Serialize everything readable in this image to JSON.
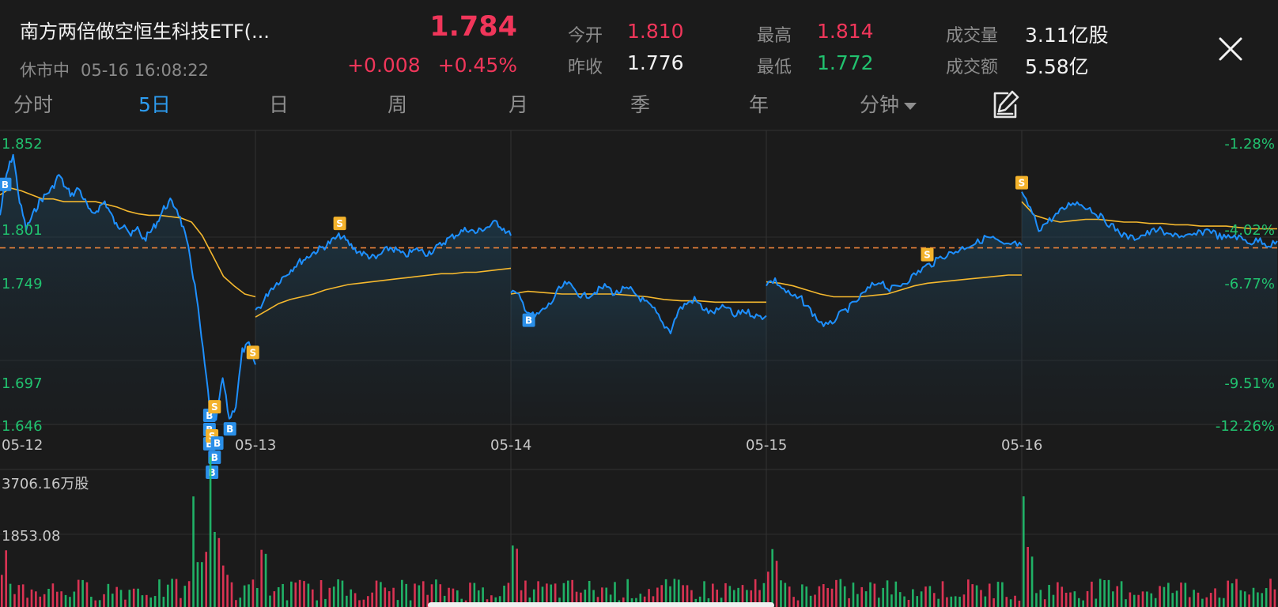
{
  "header": {
    "title": "南方两倍做空恒生科技ETF(...",
    "market_status": "休市中",
    "timestamp": "05-16 16:08:22",
    "price": "1.784",
    "change": "+0.008",
    "change_pct": "+0.45%"
  },
  "quote": {
    "open_label": "今开",
    "open": "1.810",
    "prev_close_label": "昨收",
    "prev_close": "1.776",
    "high_label": "最高",
    "high": "1.814",
    "low_label": "最低",
    "low": "1.772",
    "volume_label": "成交量",
    "volume": "3.11亿股",
    "turnover_label": "成交额",
    "turnover": "5.58亿"
  },
  "tabs": [
    {
      "label": "分时",
      "active": false
    },
    {
      "label": "5日",
      "active": true
    },
    {
      "label": "日",
      "active": false
    },
    {
      "label": "周",
      "active": false
    },
    {
      "label": "月",
      "active": false
    },
    {
      "label": "季",
      "active": false
    },
    {
      "label": "年",
      "active": false
    },
    {
      "label": "分钟",
      "active": false,
      "dropdown": true
    }
  ],
  "icons": {
    "close": "close-icon",
    "draw": "draw-edit-icon",
    "dropdown": "caret-down-icon"
  },
  "colors": {
    "background": "#1b1b1b",
    "up": "#f0365a",
    "down": "#21c26f",
    "price_line": "#1e90ff",
    "avg_line": "#f5b82e",
    "prev_close_line": "#e8813a",
    "active_tab": "#2d9cf0"
  },
  "chart_data": {
    "type": "line",
    "title": "",
    "dates": [
      "05-12",
      "05-13",
      "05-14",
      "05-15",
      "05-16"
    ],
    "price_axis": [
      "1.852",
      "1.801",
      "1.749",
      "1.697",
      "1.646"
    ],
    "pct_axis": [
      "-1.28%",
      "-4.02%",
      "-6.77%",
      "-9.51%",
      "-12.26%"
    ],
    "reference_price": 1.776,
    "ylim": [
      1.646,
      1.852
    ],
    "series": [
      {
        "name": "price",
        "days": [
          [
            1.8,
            1.83,
            1.845,
            1.81,
            1.79,
            1.8,
            1.81,
            1.815,
            1.82,
            1.83,
            1.82,
            1.815,
            1.82,
            1.81,
            1.8,
            1.805,
            1.81,
            1.8,
            1.79,
            1.795,
            1.785,
            1.79,
            1.782,
            1.788,
            1.795,
            1.805,
            1.81,
            1.805,
            1.79,
            1.77,
            1.74,
            1.7,
            1.66,
            1.65,
            1.68,
            1.65,
            1.66,
            1.7,
            1.705,
            1.69
          ],
          [
            1.73,
            1.735,
            1.745,
            1.75,
            1.755,
            1.76,
            1.765,
            1.768,
            1.772,
            1.775,
            1.778,
            1.782,
            1.785,
            1.78,
            1.775,
            1.772,
            1.77,
            1.768,
            1.773,
            1.776,
            1.774,
            1.77,
            1.773,
            1.775,
            1.772,
            1.774,
            1.778,
            1.782,
            1.785,
            1.788,
            1.79,
            1.787,
            1.79,
            1.792,
            1.795,
            1.79,
            1.785
          ],
          [
            1.745,
            1.74,
            1.73,
            1.725,
            1.73,
            1.735,
            1.745,
            1.75,
            1.745,
            1.74,
            1.742,
            1.745,
            1.748,
            1.742,
            1.745,
            1.745,
            1.74,
            1.735,
            1.73,
            1.72,
            1.715,
            1.73,
            1.735,
            1.738,
            1.732,
            1.728,
            1.73,
            1.733,
            1.725,
            1.73,
            1.728,
            1.725,
            1.726
          ],
          [
            1.75,
            1.752,
            1.745,
            1.74,
            1.738,
            1.73,
            1.722,
            1.718,
            1.725,
            1.73,
            1.735,
            1.742,
            1.748,
            1.752,
            1.745,
            1.748,
            1.752,
            1.757,
            1.762,
            1.765,
            1.77,
            1.772,
            1.775,
            1.778,
            1.78,
            1.784,
            1.782,
            1.777,
            1.779,
            1.778
          ],
          [
            1.815,
            1.805,
            1.79,
            1.795,
            1.8,
            1.805,
            1.81,
            1.808,
            1.805,
            1.8,
            1.795,
            1.79,
            1.785,
            1.783,
            1.785,
            1.787,
            1.79,
            1.785,
            1.787,
            1.783,
            1.785,
            1.787,
            1.79,
            1.785,
            1.783,
            1.785,
            1.782,
            1.78,
            1.782,
            1.778,
            1.781
          ]
        ]
      },
      {
        "name": "average",
        "days": [
          [
            1.815,
            1.82,
            1.818,
            1.815,
            1.812,
            1.812,
            1.81,
            1.81,
            1.81,
            1.81,
            1.808,
            1.806,
            1.803,
            1.801,
            1.8,
            1.8,
            1.799,
            1.798,
            1.795,
            1.785,
            1.77,
            1.755,
            1.748,
            1.742,
            1.74
          ],
          [
            1.725,
            1.73,
            1.735,
            1.738,
            1.74,
            1.742,
            1.745,
            1.747,
            1.749,
            1.75,
            1.751,
            1.752,
            1.753,
            1.754,
            1.755,
            1.756,
            1.757,
            1.757,
            1.758,
            1.758,
            1.759,
            1.76,
            1.761
          ],
          [
            1.742,
            1.744,
            1.743,
            1.742,
            1.742,
            1.742,
            1.742,
            1.741,
            1.74,
            1.738,
            1.737,
            1.737,
            1.736,
            1.736,
            1.736,
            1.736
          ],
          [
            1.751,
            1.75,
            1.748,
            1.745,
            1.742,
            1.74,
            1.74,
            1.74,
            1.741,
            1.742,
            1.745,
            1.748,
            1.75,
            1.751,
            1.752,
            1.753,
            1.754,
            1.755,
            1.756,
            1.756
          ],
          [
            1.81,
            1.8,
            1.797,
            1.795,
            1.796,
            1.797,
            1.797,
            1.796,
            1.795,
            1.795,
            1.794,
            1.794,
            1.793,
            1.793,
            1.792,
            1.792,
            1.792,
            1.791,
            1.79,
            1.79,
            1.79
          ]
        ]
      }
    ],
    "trade_markers": [
      {
        "day": 0,
        "pos": 0.02,
        "type": "B"
      },
      {
        "day": 0,
        "pos": 0.82,
        "type": "B"
      },
      {
        "day": 0,
        "pos": 0.82,
        "type": "B"
      },
      {
        "day": 0,
        "pos": 0.82,
        "type": "B"
      },
      {
        "day": 0,
        "pos": 0.84,
        "type": "S"
      },
      {
        "day": 0,
        "pos": 0.83,
        "type": "S"
      },
      {
        "day": 0,
        "pos": 0.83,
        "type": "B"
      },
      {
        "day": 0,
        "pos": 0.85,
        "type": "B"
      },
      {
        "day": 0,
        "pos": 0.9,
        "type": "B"
      },
      {
        "day": 0,
        "pos": 0.84,
        "type": "B"
      },
      {
        "day": 0,
        "pos": 0.99,
        "type": "S"
      },
      {
        "day": 1,
        "pos": 0.33,
        "type": "S"
      },
      {
        "day": 2,
        "pos": 0.07,
        "type": "B"
      },
      {
        "day": 3,
        "pos": 0.63,
        "type": "S"
      },
      {
        "day": 4,
        "pos": 0.0,
        "type": "S"
      }
    ],
    "volume": {
      "axis_labels": [
        "3706.16万股",
        "1853.08"
      ],
      "max": 3706.16,
      "bars_per_day": 60
    }
  }
}
